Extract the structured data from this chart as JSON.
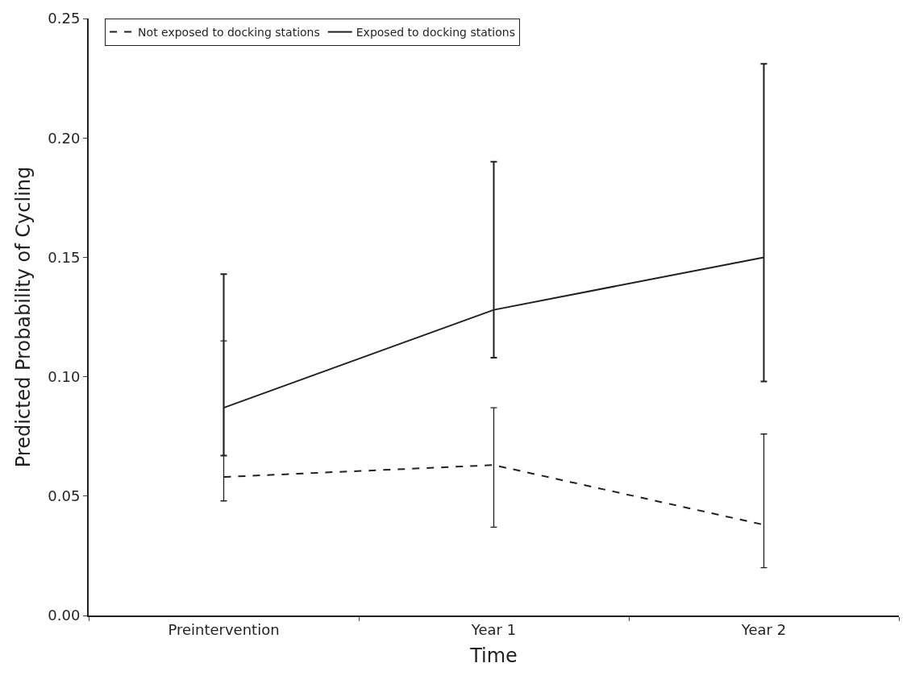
{
  "chart_data": {
    "type": "line",
    "xlabel": "Time",
    "ylabel": "Predicted Probability of Cycling",
    "categories": [
      "Preintervention",
      "Year 1",
      "Year 2"
    ],
    "series": [
      {
        "name": "Not exposed to docking stations",
        "color": "#231f20",
        "line_style": "dashed",
        "values": [
          0.058,
          0.063,
          0.038
        ],
        "errors": [
          [
            0.048,
            0.115
          ],
          [
            0.037,
            0.087
          ],
          [
            0.02,
            0.076
          ]
        ]
      },
      {
        "name": "Exposed to docking stations",
        "color": "#231f20",
        "line_style": "solid",
        "values": [
          0.087,
          0.128,
          0.15
        ],
        "errors": [
          [
            0.067,
            0.143
          ],
          [
            0.108,
            0.19
          ],
          [
            0.098,
            0.231
          ]
        ]
      }
    ],
    "ylim": [
      0,
      0.25
    ],
    "yticks": [
      {
        "value": 0,
        "label": "0.00"
      },
      {
        "value": 0.05,
        "label": "0.05"
      },
      {
        "value": 0.1,
        "label": "0.10"
      },
      {
        "value": 0.15,
        "label": "0.15"
      },
      {
        "value": 0.2,
        "label": "0.20"
      },
      {
        "value": 0.25,
        "label": "0.25"
      }
    ],
    "legend": "top left",
    "marker": "none"
  }
}
